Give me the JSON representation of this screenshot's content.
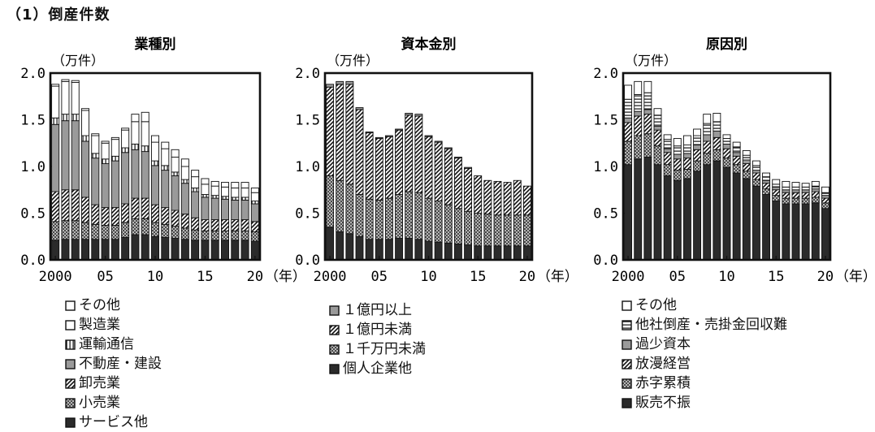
{
  "page": {
    "title": "（1）倒産件数"
  },
  "colors": {
    "ink": "#111111",
    "light": "#ffffff",
    "gray": "#9a9a9a",
    "dark": "#2b2b2b"
  },
  "chart_data": [
    {
      "type": "bar",
      "stacked": true,
      "title": "業種別",
      "ylabel": "（万件）",
      "xlabel": "（年）",
      "ylim": [
        0,
        2.0
      ],
      "yticks": [
        "0.0",
        "0.5",
        "1.0",
        "1.5",
        "2.0"
      ],
      "x": [
        2000,
        2001,
        2002,
        2003,
        2004,
        2005,
        2006,
        2007,
        2008,
        2009,
        2010,
        2011,
        2012,
        2013,
        2014,
        2015,
        2016,
        2017,
        2018,
        2019,
        2020
      ],
      "xticks": [
        {
          "x": 2000,
          "label": "2000"
        },
        {
          "x": 2005,
          "label": "05"
        },
        {
          "x": 2010,
          "label": "10"
        },
        {
          "x": 2015,
          "label": "15"
        },
        {
          "x": 2020,
          "label": "20"
        }
      ],
      "legend_order": [
        "その他",
        "製造業",
        "運輸通信",
        "不動産・建設",
        "卸売業",
        "小売業",
        "サービス他"
      ],
      "series": [
        {
          "name": "サービス他",
          "pattern": "dark",
          "values": [
            0.21,
            0.22,
            0.22,
            0.22,
            0.22,
            0.22,
            0.22,
            0.24,
            0.27,
            0.27,
            0.25,
            0.24,
            0.23,
            0.22,
            0.21,
            0.21,
            0.21,
            0.21,
            0.21,
            0.21,
            0.2
          ]
        },
        {
          "name": "小売業",
          "pattern": "cross",
          "values": [
            0.2,
            0.2,
            0.2,
            0.18,
            0.16,
            0.15,
            0.15,
            0.16,
            0.17,
            0.17,
            0.15,
            0.14,
            0.13,
            0.12,
            0.11,
            0.1,
            0.1,
            0.1,
            0.1,
            0.1,
            0.1
          ]
        },
        {
          "name": "卸売業",
          "pattern": "diag",
          "values": [
            0.32,
            0.33,
            0.33,
            0.27,
            0.21,
            0.19,
            0.19,
            0.2,
            0.22,
            0.22,
            0.19,
            0.18,
            0.17,
            0.15,
            0.13,
            0.12,
            0.12,
            0.12,
            0.12,
            0.12,
            0.11
          ]
        },
        {
          "name": "不動産・建設",
          "pattern": "gray",
          "values": [
            0.72,
            0.74,
            0.74,
            0.6,
            0.5,
            0.47,
            0.5,
            0.55,
            0.52,
            0.5,
            0.42,
            0.4,
            0.37,
            0.33,
            0.28,
            0.24,
            0.23,
            0.22,
            0.21,
            0.21,
            0.19
          ]
        },
        {
          "name": "運輸通信",
          "pattern": "vstripe",
          "values": [
            0.07,
            0.07,
            0.07,
            0.06,
            0.05,
            0.05,
            0.05,
            0.05,
            0.06,
            0.06,
            0.05,
            0.05,
            0.04,
            0.04,
            0.04,
            0.03,
            0.03,
            0.03,
            0.03,
            0.03,
            0.03
          ]
        },
        {
          "name": "製造業",
          "pattern": "light",
          "values": [
            0.34,
            0.35,
            0.34,
            0.27,
            0.19,
            0.17,
            0.18,
            0.19,
            0.24,
            0.26,
            0.2,
            0.18,
            0.16,
            0.14,
            0.12,
            0.11,
            0.1,
            0.1,
            0.1,
            0.1,
            0.09
          ]
        },
        {
          "name": "その他",
          "pattern": "light",
          "values": [
            0.02,
            0.02,
            0.02,
            0.02,
            0.02,
            0.02,
            0.02,
            0.02,
            0.08,
            0.1,
            0.07,
            0.07,
            0.08,
            0.08,
            0.07,
            0.06,
            0.05,
            0.05,
            0.06,
            0.06,
            0.05
          ]
        }
      ]
    },
    {
      "type": "bar",
      "stacked": true,
      "title": "資本金別",
      "ylabel": "（万件）",
      "xlabel": "（年）",
      "ylim": [
        0,
        2.0
      ],
      "yticks": [
        "0.0",
        "0.5",
        "1.0",
        "1.5",
        "2.0"
      ],
      "x": [
        2000,
        2001,
        2002,
        2003,
        2004,
        2005,
        2006,
        2007,
        2008,
        2009,
        2010,
        2011,
        2012,
        2013,
        2014,
        2015,
        2016,
        2017,
        2018,
        2019,
        2020
      ],
      "xticks": [
        {
          "x": 2000,
          "label": "2000"
        },
        {
          "x": 2005,
          "label": "05"
        },
        {
          "x": 2010,
          "label": "10"
        },
        {
          "x": 2015,
          "label": "15"
        },
        {
          "x": 2020,
          "label": "20"
        }
      ],
      "legend_order": [
        "１億円以上",
        "１億円未満",
        "１千万円未満",
        "個人企業他"
      ],
      "series": [
        {
          "name": "個人企業他",
          "pattern": "dark",
          "values": [
            0.35,
            0.3,
            0.28,
            0.25,
            0.22,
            0.22,
            0.22,
            0.23,
            0.23,
            0.22,
            0.2,
            0.19,
            0.18,
            0.17,
            0.16,
            0.15,
            0.15,
            0.15,
            0.15,
            0.15,
            0.15
          ]
        },
        {
          "name": "１千万円未満",
          "pattern": "cross",
          "values": [
            0.55,
            0.55,
            0.53,
            0.45,
            0.43,
            0.42,
            0.44,
            0.47,
            0.5,
            0.5,
            0.46,
            0.44,
            0.41,
            0.38,
            0.36,
            0.35,
            0.34,
            0.33,
            0.33,
            0.33,
            0.33
          ]
        },
        {
          "name": "１億円未満",
          "pattern": "diag",
          "values": [
            0.95,
            1.03,
            1.07,
            0.91,
            0.71,
            0.66,
            0.66,
            0.69,
            0.82,
            0.82,
            0.66,
            0.63,
            0.6,
            0.54,
            0.46,
            0.4,
            0.36,
            0.36,
            0.35,
            0.37,
            0.31
          ]
        },
        {
          "name": "１億円以上",
          "pattern": "gray",
          "values": [
            0.03,
            0.03,
            0.03,
            0.02,
            0.01,
            0.01,
            0.01,
            0.01,
            0.02,
            0.02,
            0.01,
            0.01,
            0.01,
            0.01,
            0.01,
            0.0,
            0.0,
            0.0,
            0.0,
            0.0,
            0.0
          ]
        }
      ]
    },
    {
      "type": "bar",
      "stacked": true,
      "title": "原因別",
      "ylabel": "（万件）",
      "xlabel": "（年）",
      "ylim": [
        0,
        2.0
      ],
      "yticks": [
        "0.0",
        "0.5",
        "1.0",
        "1.5",
        "2.0"
      ],
      "x": [
        2000,
        2001,
        2002,
        2003,
        2004,
        2005,
        2006,
        2007,
        2008,
        2009,
        2010,
        2011,
        2012,
        2013,
        2014,
        2015,
        2016,
        2017,
        2018,
        2019,
        2020
      ],
      "xticks": [
        {
          "x": 2000,
          "label": "2000"
        },
        {
          "x": 2005,
          "label": "05"
        },
        {
          "x": 2010,
          "label": "10"
        },
        {
          "x": 2015,
          "label": "15"
        },
        {
          "x": 2020,
          "label": "20"
        }
      ],
      "legend_order": [
        "その他",
        "他社倒産・売掛金回収難",
        "過少資本",
        "放漫経営",
        "赤字累積",
        "販売不振"
      ],
      "series": [
        {
          "name": "販売不振",
          "pattern": "dark",
          "values": [
            1.02,
            1.08,
            1.1,
            1.02,
            0.9,
            0.85,
            0.87,
            0.95,
            1.02,
            1.06,
            0.99,
            0.93,
            0.87,
            0.79,
            0.7,
            0.63,
            0.6,
            0.6,
            0.6,
            0.61,
            0.55
          ]
        },
        {
          "name": "赤字累積",
          "pattern": "cross",
          "values": [
            0.25,
            0.25,
            0.25,
            0.2,
            0.12,
            0.11,
            0.1,
            0.11,
            0.12,
            0.12,
            0.1,
            0.09,
            0.08,
            0.07,
            0.06,
            0.06,
            0.06,
            0.06,
            0.06,
            0.06,
            0.06
          ]
        },
        {
          "name": "放漫経営",
          "pattern": "diag",
          "values": [
            0.2,
            0.21,
            0.21,
            0.17,
            0.13,
            0.12,
            0.12,
            0.12,
            0.13,
            0.13,
            0.1,
            0.09,
            0.08,
            0.07,
            0.06,
            0.06,
            0.06,
            0.06,
            0.06,
            0.06,
            0.05
          ]
        },
        {
          "name": "過少資本",
          "pattern": "gray",
          "values": [
            0.05,
            0.05,
            0.05,
            0.04,
            0.04,
            0.05,
            0.05,
            0.05,
            0.07,
            0.07,
            0.05,
            0.04,
            0.04,
            0.03,
            0.03,
            0.03,
            0.03,
            0.03,
            0.03,
            0.03,
            0.03
          ]
        },
        {
          "name": "他社倒産・売掛金回収難",
          "pattern": "hstripe",
          "values": [
            0.2,
            0.18,
            0.18,
            0.12,
            0.1,
            0.09,
            0.09,
            0.1,
            0.12,
            0.1,
            0.06,
            0.06,
            0.05,
            0.05,
            0.04,
            0.03,
            0.03,
            0.03,
            0.03,
            0.03,
            0.03
          ]
        },
        {
          "name": "その他",
          "pattern": "light",
          "values": [
            0.15,
            0.14,
            0.12,
            0.07,
            0.05,
            0.08,
            0.1,
            0.07,
            0.1,
            0.09,
            0.04,
            0.05,
            0.05,
            0.05,
            0.04,
            0.05,
            0.06,
            0.05,
            0.04,
            0.05,
            0.06
          ]
        }
      ]
    }
  ]
}
